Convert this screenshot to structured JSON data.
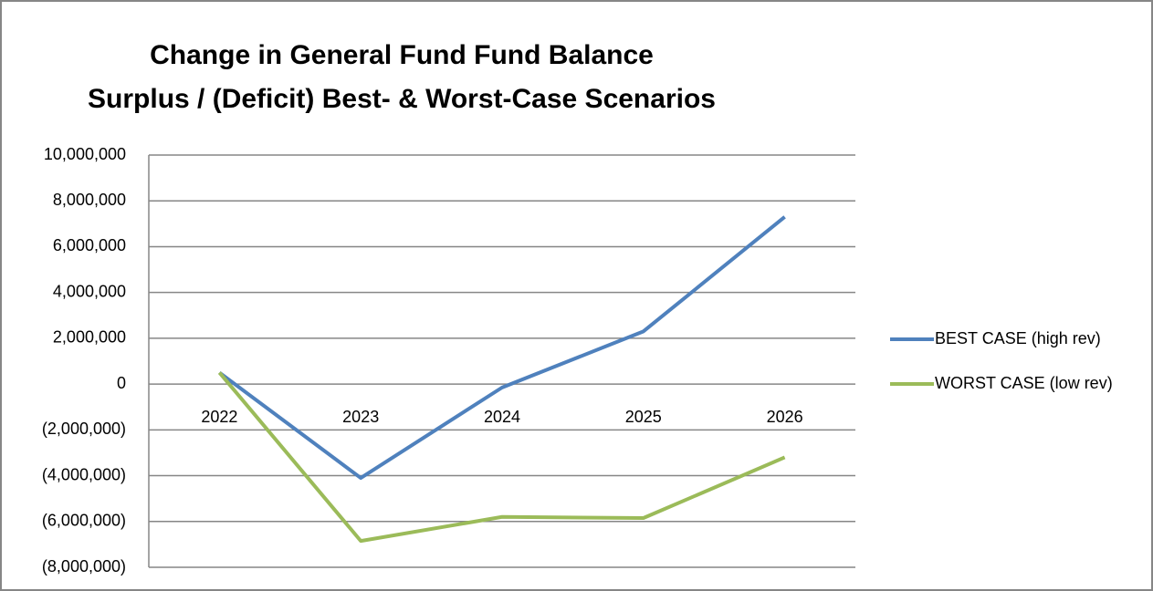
{
  "chart_data": {
    "type": "line",
    "title": "Change in General Fund Fund Balance",
    "subtitle": "Surplus / (Deficit) Best- & Worst-Case Scenarios",
    "categories": [
      "2022",
      "2023",
      "2024",
      "2025",
      "2026"
    ],
    "series": [
      {
        "name": "BEST CASE (high rev)",
        "color": "#4f81bd",
        "values": [
          500000,
          -4100000,
          -150000,
          2300000,
          7300000
        ]
      },
      {
        "name": "WORST CASE (low rev)",
        "color": "#9bbb59",
        "values": [
          500000,
          -6850000,
          -5800000,
          -5850000,
          -3200000
        ]
      }
    ],
    "ylim": [
      -8000000,
      10000000
    ],
    "yticks": [
      {
        "value": -8000000,
        "label": "(8,000,000)"
      },
      {
        "value": -6000000,
        "label": "(6,000,000)"
      },
      {
        "value": -4000000,
        "label": "(4,000,000)"
      },
      {
        "value": -2000000,
        "label": "(2,000,000)"
      },
      0,
      {
        "value": 2000000,
        "label": "2,000,000"
      },
      {
        "value": 4000000,
        "label": "4,000,000"
      },
      {
        "value": 6000000,
        "label": "6,000,000"
      },
      {
        "value": 8000000,
        "label": "8,000,000"
      },
      {
        "value": 10000000,
        "label": "10,000,000"
      }
    ],
    "negative_tick_color": "#ff0000",
    "grid": true,
    "legend": "right"
  }
}
